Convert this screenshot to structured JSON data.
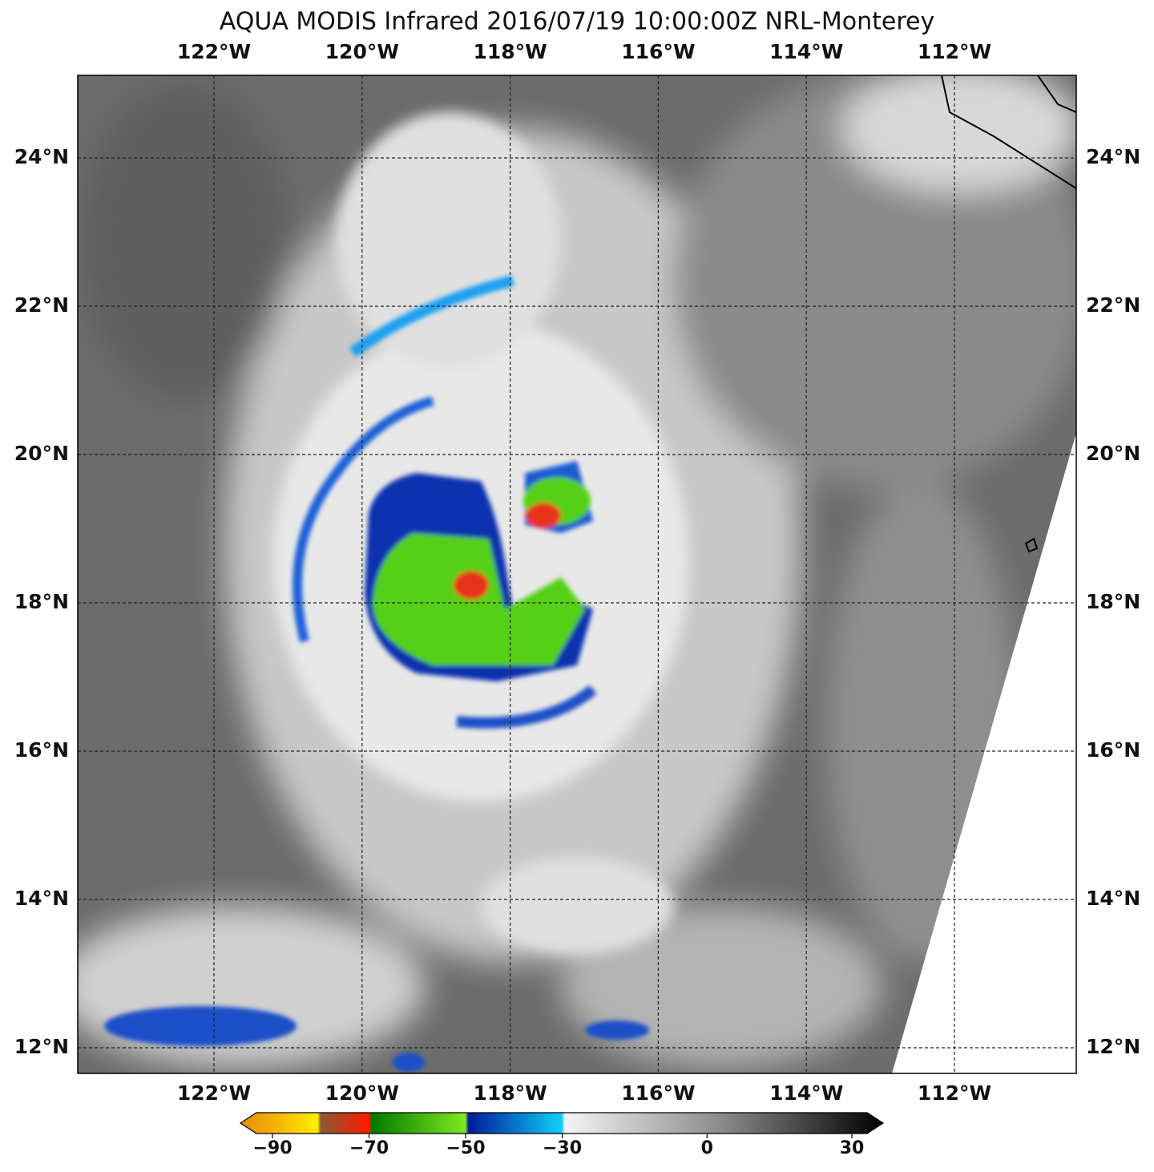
{
  "title": "AQUA MODIS Infrared 2016/07/19 10:00:00Z NRL-Monterey",
  "longitude_labels": [
    "122°W",
    "120°W",
    "118°W",
    "116°W",
    "114°W",
    "112°W"
  ],
  "latitude_labels": [
    "24°N",
    "22°N",
    "20°N",
    "18°N",
    "16°N",
    "14°N",
    "12°N"
  ],
  "colorbar": {
    "range": [
      -90,
      30
    ],
    "ticks": [
      {
        "value": -90,
        "label": "−90"
      },
      {
        "value": -70,
        "label": "−70"
      },
      {
        "value": -50,
        "label": "−50"
      },
      {
        "value": -30,
        "label": "−30"
      },
      0,
      30
    ]
  }
}
